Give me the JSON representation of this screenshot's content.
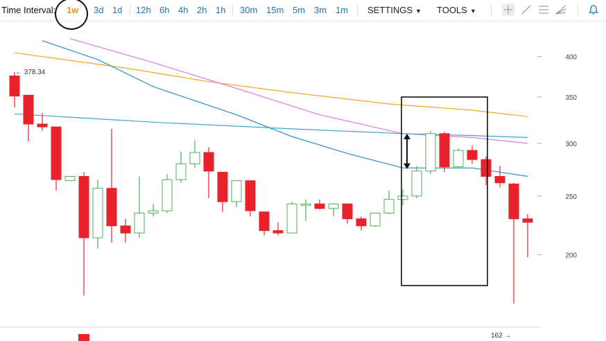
{
  "toolbar": {
    "time_interval_label": "Time Interval:",
    "intervals": [
      "1w",
      "3d",
      "1d",
      "12h",
      "6h",
      "4h",
      "2h",
      "1h",
      "30m",
      "15m",
      "5m",
      "3m",
      "1m"
    ],
    "active_interval": "1w",
    "settings_label": "SETTINGS",
    "tools_label": "TOOLS",
    "tool_icons": [
      "crosshair-icon",
      "line-draw-icon",
      "horizontal-lines-icon",
      "fan-lines-icon"
    ],
    "alert_icon": "bell-icon"
  },
  "chart_data": {
    "type": "candlestick",
    "y_ticks": [
      200,
      250,
      300,
      350,
      400
    ],
    "ylim": [
      162,
      415
    ],
    "grid": false,
    "colors": {
      "up": "#4caf50",
      "down": "#e8222a",
      "ma_orange": "#f5a623",
      "ma_violet": "#e07ae0",
      "ma_blue": "#2a8fd0",
      "ma_cyan": "#3ba5cf"
    },
    "candles": [
      {
        "o": 375,
        "h": 380,
        "l": 338,
        "c": 351
      },
      {
        "o": 352,
        "h": 352,
        "l": 302,
        "c": 320
      },
      {
        "o": 320,
        "h": 332,
        "l": 313,
        "c": 317
      },
      {
        "o": 317,
        "h": 317,
        "l": 255,
        "c": 265
      },
      {
        "o": 264,
        "h": 268,
        "l": 265,
        "c": 268
      },
      {
        "o": 268,
        "h": 272,
        "l": 168,
        "c": 214
      },
      {
        "o": 214,
        "h": 265,
        "l": 205,
        "c": 257
      },
      {
        "o": 257,
        "h": 315,
        "l": 210,
        "c": 224
      },
      {
        "o": 224,
        "h": 230,
        "l": 210,
        "c": 218
      },
      {
        "o": 218,
        "h": 268,
        "l": 214,
        "c": 235
      },
      {
        "o": 235,
        "h": 243,
        "l": 232,
        "c": 237
      },
      {
        "o": 237,
        "h": 270,
        "l": 235,
        "c": 265
      },
      {
        "o": 265,
        "h": 292,
        "l": 262,
        "c": 280
      },
      {
        "o": 280,
        "h": 303,
        "l": 276,
        "c": 291
      },
      {
        "o": 291,
        "h": 296,
        "l": 248,
        "c": 273
      },
      {
        "o": 272,
        "h": 272,
        "l": 236,
        "c": 245
      },
      {
        "o": 245,
        "h": 264,
        "l": 240,
        "c": 264
      },
      {
        "o": 264,
        "h": 264,
        "l": 232,
        "c": 237
      },
      {
        "o": 236,
        "h": 236,
        "l": 216,
        "c": 220
      },
      {
        "o": 220,
        "h": 227,
        "l": 216,
        "c": 218
      },
      {
        "o": 218,
        "h": 245,
        "l": 218,
        "c": 243
      },
      {
        "o": 243,
        "h": 247,
        "l": 228,
        "c": 243
      },
      {
        "o": 243,
        "h": 247,
        "l": 238,
        "c": 239
      },
      {
        "o": 239,
        "h": 242,
        "l": 232,
        "c": 243
      },
      {
        "o": 243,
        "h": 243,
        "l": 226,
        "c": 230
      },
      {
        "o": 230,
        "h": 232,
        "l": 220,
        "c": 224
      },
      {
        "o": 224,
        "h": 234,
        "l": 223,
        "c": 235
      },
      {
        "o": 235,
        "h": 255,
        "l": 234,
        "c": 247
      },
      {
        "o": 247,
        "h": 256,
        "l": 242,
        "c": 250
      },
      {
        "o": 250,
        "h": 278,
        "l": 248,
        "c": 273
      },
      {
        "o": 273,
        "h": 313,
        "l": 270,
        "c": 310
      },
      {
        "o": 310,
        "h": 312,
        "l": 272,
        "c": 277
      },
      {
        "o": 277,
        "h": 295,
        "l": 276,
        "c": 293
      },
      {
        "o": 293,
        "h": 298,
        "l": 280,
        "c": 284
      },
      {
        "o": 284,
        "h": 287,
        "l": 260,
        "c": 268
      },
      {
        "o": 268,
        "h": 278,
        "l": 258,
        "c": 262
      },
      {
        "o": 261,
        "h": 262,
        "l": 162,
        "c": 230
      },
      {
        "o": 230,
        "h": 234,
        "l": 198,
        "c": 227
      }
    ],
    "partial_candle": {
      "type": "down",
      "note": "partially visible below the axis at the 6th position"
    },
    "moving_averages": [
      {
        "color": "ma_orange",
        "values": [
          [
            0,
            405
          ],
          [
            8,
            385
          ],
          [
            14,
            368
          ],
          [
            20,
            355
          ],
          [
            27,
            342
          ],
          [
            33,
            335
          ],
          [
            37,
            328
          ]
        ]
      },
      {
        "color": "ma_violet",
        "values": [
          [
            4,
            425
          ],
          [
            10,
            392
          ],
          [
            16,
            360
          ],
          [
            22,
            330
          ],
          [
            28,
            310
          ],
          [
            33,
            306
          ],
          [
            37,
            300
          ]
        ]
      },
      {
        "color": "ma_blue",
        "values": [
          [
            2,
            422
          ],
          [
            6,
            396
          ],
          [
            10,
            362
          ],
          [
            16,
            330
          ],
          [
            20,
            307
          ],
          [
            24,
            290
          ],
          [
            28,
            276
          ],
          [
            33,
            276
          ],
          [
            37,
            268
          ]
        ]
      },
      {
        "color": "ma_cyan",
        "values": [
          [
            0,
            331
          ],
          [
            10,
            322
          ],
          [
            20,
            315
          ],
          [
            28,
            310
          ],
          [
            33,
            308
          ],
          [
            37,
            306
          ]
        ]
      }
    ],
    "annotations": {
      "high_label": "378.34",
      "low_label": "162",
      "highlight_box": {
        "from_candle": 28,
        "to_candle": 34
      },
      "double_arrow": {
        "candle": 29,
        "from": 310,
        "to": 275
      }
    }
  }
}
